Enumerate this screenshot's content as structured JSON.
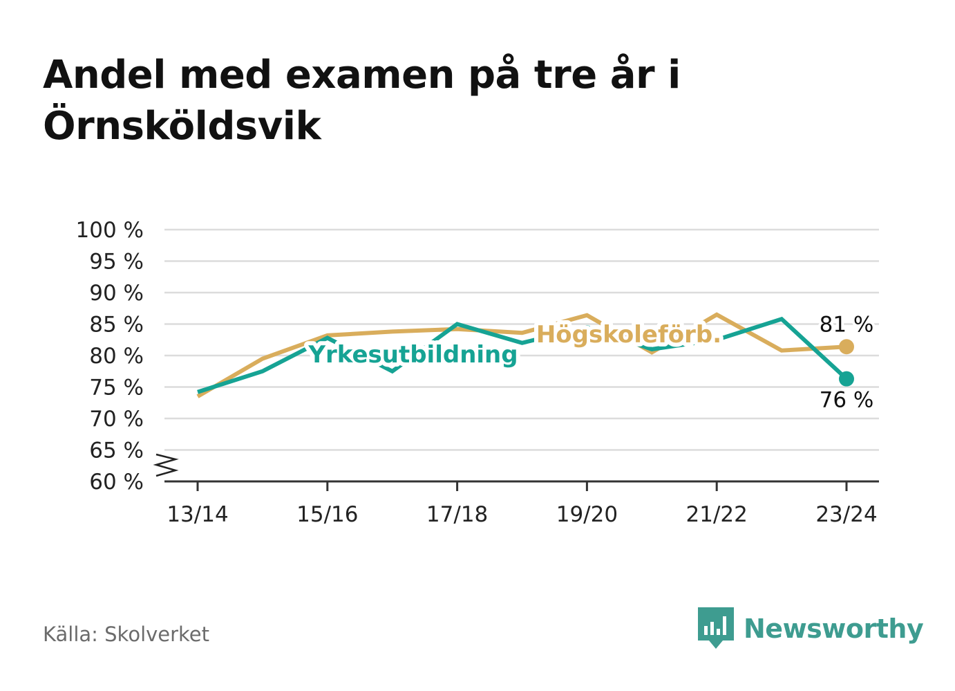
{
  "title": "Andel med examen på tre år i Örnsköldsvik",
  "source": "Källa: Skolverket",
  "brand": {
    "name": "Newsworthy",
    "icon": "bar-chart-speech-bubble-icon",
    "color": "#3e9c90"
  },
  "chart_data": {
    "type": "line",
    "x": [
      "13/14",
      "14/15",
      "15/16",
      "16/17",
      "17/18",
      "18/19",
      "19/20",
      "20/21",
      "21/22",
      "22/23",
      "23/24"
    ],
    "x_tick_labels": [
      "13/14",
      "15/16",
      "17/18",
      "19/20",
      "21/22",
      "23/24"
    ],
    "y_tick_labels": [
      "60 %",
      "65 %",
      "70 %",
      "75 %",
      "80 %",
      "85 %",
      "90 %",
      "95 %",
      "100 %"
    ],
    "ylim": [
      60,
      100
    ],
    "y_axis_break": true,
    "grid": true,
    "legend": "inline labels",
    "series": [
      {
        "name": "Högskoleförb.",
        "color": "#d9ad5c",
        "values": [
          73.5,
          79.5,
          83.2,
          83.8,
          84.2,
          83.6,
          86.4,
          80.5,
          86.5,
          80.8,
          81.4
        ],
        "end_label": "81 %"
      },
      {
        "name": "Yrkesutbildning",
        "color": "#16a394",
        "values": [
          74.2,
          77.5,
          82.8,
          77.5,
          85.0,
          82.0,
          84.5,
          81.0,
          82.5,
          85.8,
          76.3
        ],
        "end_label": "76 %"
      }
    ]
  }
}
